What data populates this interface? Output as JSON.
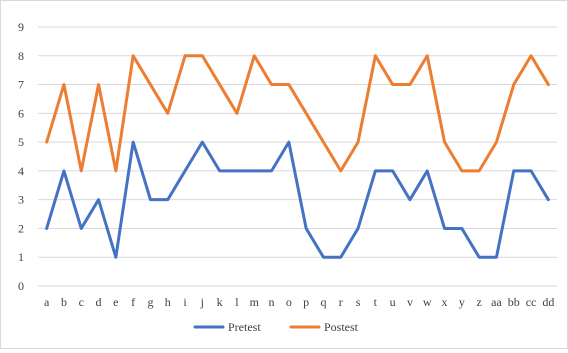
{
  "chart_data": {
    "type": "line",
    "title": "",
    "xlabel": "",
    "ylabel": "",
    "ylim": [
      0,
      9
    ],
    "yticks": [
      0,
      1,
      2,
      3,
      4,
      5,
      6,
      7,
      8,
      9
    ],
    "grid": "horizontal",
    "legend_position": "bottom",
    "categories": [
      "a",
      "b",
      "c",
      "d",
      "e",
      "f",
      "g",
      "h",
      "i",
      "j",
      "k",
      "l",
      "m",
      "n",
      "o",
      "p",
      "q",
      "r",
      "s",
      "t",
      "u",
      "v",
      "w",
      "x",
      "y",
      "z",
      "aa",
      "bb",
      "cc",
      "dd"
    ],
    "series": [
      {
        "name": "Pretest",
        "color": "#4472c4",
        "values": [
          2,
          4,
          2,
          3,
          1,
          5,
          3,
          3,
          4,
          5,
          4,
          4,
          4,
          4,
          5,
          2,
          1,
          1,
          2,
          4,
          4,
          3,
          4,
          2,
          2,
          1,
          1,
          4,
          4,
          3
        ]
      },
      {
        "name": "Postest",
        "color": "#ed7d31",
        "values": [
          5,
          7,
          4,
          7,
          4,
          8,
          7,
          6,
          8,
          8,
          7,
          6,
          8,
          7,
          7,
          6,
          5,
          4,
          5,
          8,
          7,
          7,
          8,
          5,
          4,
          4,
          5,
          7,
          8,
          7
        ]
      }
    ]
  }
}
